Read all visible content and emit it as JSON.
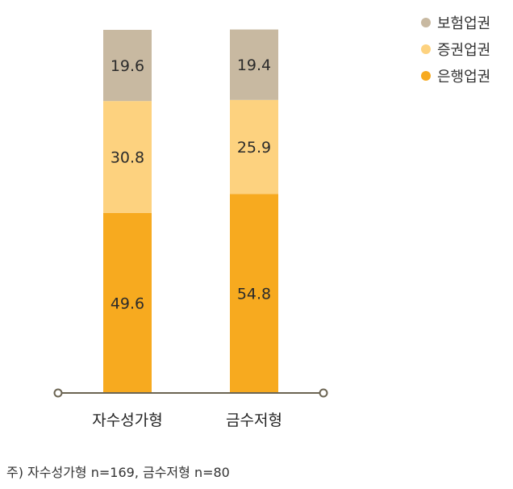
{
  "chart_data": {
    "type": "bar",
    "stacked": true,
    "unit": "%",
    "categories": [
      "자수성가형",
      "금수저형"
    ],
    "series": [
      {
        "name": "은행업권",
        "values": [
          49.6,
          54.8
        ],
        "color": "#F7AA1F"
      },
      {
        "name": "증권업권",
        "values": [
          30.8,
          25.9
        ],
        "color": "#FDD27F"
      },
      {
        "name": "보험업권",
        "values": [
          19.6,
          19.4
        ],
        "color": "#C8B9A1"
      }
    ],
    "legend_position": "top-right",
    "ylim": [
      0,
      100
    ],
    "grid": false,
    "axis_color": "#6B6452",
    "label_color": "#2B2B2B"
  },
  "footnote": "주) 자수성가형 n=169, 금수저형 n=80"
}
